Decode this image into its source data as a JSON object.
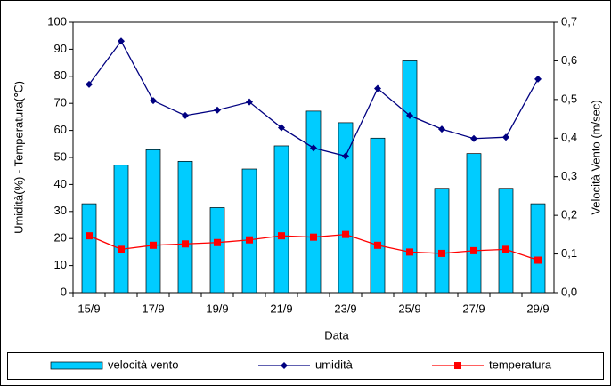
{
  "chart_data": {
    "type": "combo",
    "xlabel": "Data",
    "ylabel": "Umidità(%) - Temperatura(℃)",
    "y2label": "Velocità Vento (m/sec)",
    "categories": [
      "15/9",
      null,
      "17/9",
      null,
      "19/9",
      null,
      "21/9",
      null,
      "23/9",
      null,
      "25/9",
      null,
      "27/9",
      null,
      "29/9"
    ],
    "ylim": [
      0,
      100
    ],
    "yticks": [
      0,
      10,
      20,
      30,
      40,
      50,
      60,
      70,
      80,
      90,
      100
    ],
    "y2lim": [
      0,
      0.7
    ],
    "y2ticks": [
      {
        "value": 0,
        "label": "0,0"
      },
      {
        "value": 0.1,
        "label": "0,1"
      },
      {
        "value": 0.2,
        "label": "0,2"
      },
      {
        "value": 0.3,
        "label": "0,3"
      },
      {
        "value": 0.4,
        "label": "0,4"
      },
      {
        "value": 0.5,
        "label": "0,5"
      },
      {
        "value": 0.6,
        "label": "0,6"
      },
      {
        "value": 0.7,
        "label": "0,7"
      }
    ],
    "legend": "bottom",
    "series": [
      {
        "name": "velocità vento",
        "type": "bar",
        "axis": "y2",
        "color": "#00ccff",
        "values": [
          0.23,
          0.33,
          0.37,
          0.34,
          0.22,
          0.32,
          0.38,
          0.47,
          0.44,
          0.4,
          0.6,
          0.27,
          0.36,
          0.27,
          0.23
        ]
      },
      {
        "name": "umidità",
        "type": "line",
        "marker": "diamond",
        "color": "#000080",
        "values": [
          77,
          93,
          71,
          65.5,
          67.5,
          70.5,
          61,
          53.5,
          50.5,
          75.5,
          65.5,
          60.5,
          57,
          57.5,
          79
        ]
      },
      {
        "name": "temperatura",
        "type": "line",
        "marker": "square",
        "color": "#ff0000",
        "values": [
          21,
          16,
          17.5,
          18,
          18.5,
          19.5,
          21,
          20.5,
          21.5,
          17.5,
          15,
          14.5,
          15.5,
          16,
          12
        ]
      }
    ]
  }
}
